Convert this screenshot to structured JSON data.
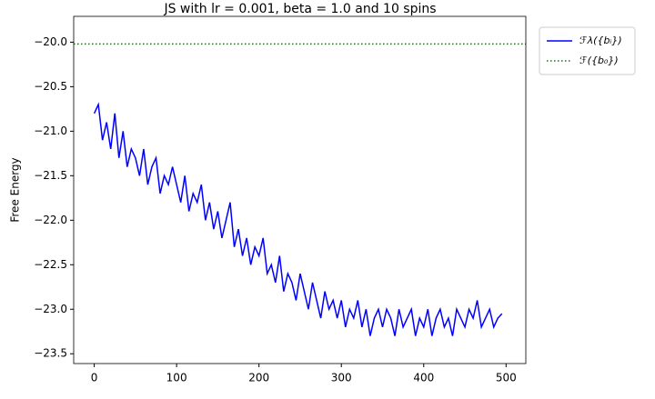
{
  "chart_data": {
    "type": "line",
    "title": "JS with lr = 0.001, beta = 1.0 and 10 spins",
    "y_label": "Free Energy",
    "x": [
      0,
      5,
      10,
      15,
      20,
      25,
      30,
      35,
      40,
      45,
      50,
      55,
      60,
      65,
      70,
      75,
      80,
      85,
      90,
      95,
      100,
      105,
      110,
      115,
      120,
      125,
      130,
      135,
      140,
      145,
      150,
      155,
      160,
      165,
      170,
      175,
      180,
      185,
      190,
      195,
      200,
      205,
      210,
      215,
      220,
      225,
      230,
      235,
      240,
      245,
      250,
      255,
      260,
      265,
      270,
      275,
      280,
      285,
      290,
      295,
      300,
      305,
      310,
      315,
      320,
      325,
      330,
      335,
      340,
      345,
      350,
      355,
      360,
      365,
      370,
      375,
      380,
      385,
      390,
      395,
      400,
      405,
      410,
      415,
      420,
      425,
      430,
      435,
      440,
      445,
      450,
      455,
      460,
      465,
      470,
      475,
      480,
      485,
      490,
      495
    ],
    "series": [
      {
        "name": "ℱλ({bᵢ})",
        "color": "#0000ff",
        "values": [
          -20.8,
          -20.7,
          -21.1,
          -20.9,
          -21.2,
          -20.8,
          -21.3,
          -21.0,
          -21.4,
          -21.2,
          -21.3,
          -21.5,
          -21.2,
          -21.6,
          -21.4,
          -21.3,
          -21.7,
          -21.5,
          -21.6,
          -21.4,
          -21.6,
          -21.8,
          -21.5,
          -21.9,
          -21.7,
          -21.8,
          -21.6,
          -22.0,
          -21.8,
          -22.1,
          -21.9,
          -22.2,
          -22.0,
          -21.8,
          -22.3,
          -22.1,
          -22.4,
          -22.2,
          -22.5,
          -22.3,
          -22.4,
          -22.2,
          -22.6,
          -22.5,
          -22.7,
          -22.4,
          -22.8,
          -22.6,
          -22.7,
          -22.9,
          -22.6,
          -22.8,
          -23.0,
          -22.7,
          -22.9,
          -23.1,
          -22.8,
          -23.0,
          -22.9,
          -23.1,
          -22.9,
          -23.2,
          -23.0,
          -23.1,
          -22.9,
          -23.2,
          -23.0,
          -23.3,
          -23.1,
          -23.0,
          -23.2,
          -23.0,
          -23.1,
          -23.3,
          -23.0,
          -23.2,
          -23.1,
          -23.0,
          -23.3,
          -23.1,
          -23.2,
          -23.0,
          -23.3,
          -23.1,
          -23.0,
          -23.2,
          -23.1,
          -23.3,
          -23.0,
          -23.1,
          -23.2,
          -23.0,
          -23.1,
          -22.9,
          -23.2,
          -23.1,
          -23.0,
          -23.2,
          -23.1,
          -23.05
        ]
      }
    ],
    "reference": {
      "name": "ℱ({b₀})",
      "color": "#008000",
      "value": -20.02
    },
    "xlim": [
      -24.95,
      523.95
    ],
    "xticks": [
      0,
      100,
      200,
      300,
      400,
      500
    ],
    "ylim": [
      -23.61,
      -19.71
    ],
    "yticks": [
      {
        "value": -23.5,
        "label": "−23.5"
      },
      {
        "value": -23.0,
        "label": "−23.0"
      },
      {
        "value": -22.5,
        "label": "−22.5"
      },
      {
        "value": -22.0,
        "label": "−22.0"
      },
      {
        "value": -21.5,
        "label": "−21.5"
      },
      {
        "value": -21.0,
        "label": "−21.0"
      },
      {
        "value": -20.5,
        "label": "−20.5"
      },
      {
        "value": -20.0,
        "label": "−20.0"
      }
    ],
    "legend": "outside-upper-right"
  }
}
